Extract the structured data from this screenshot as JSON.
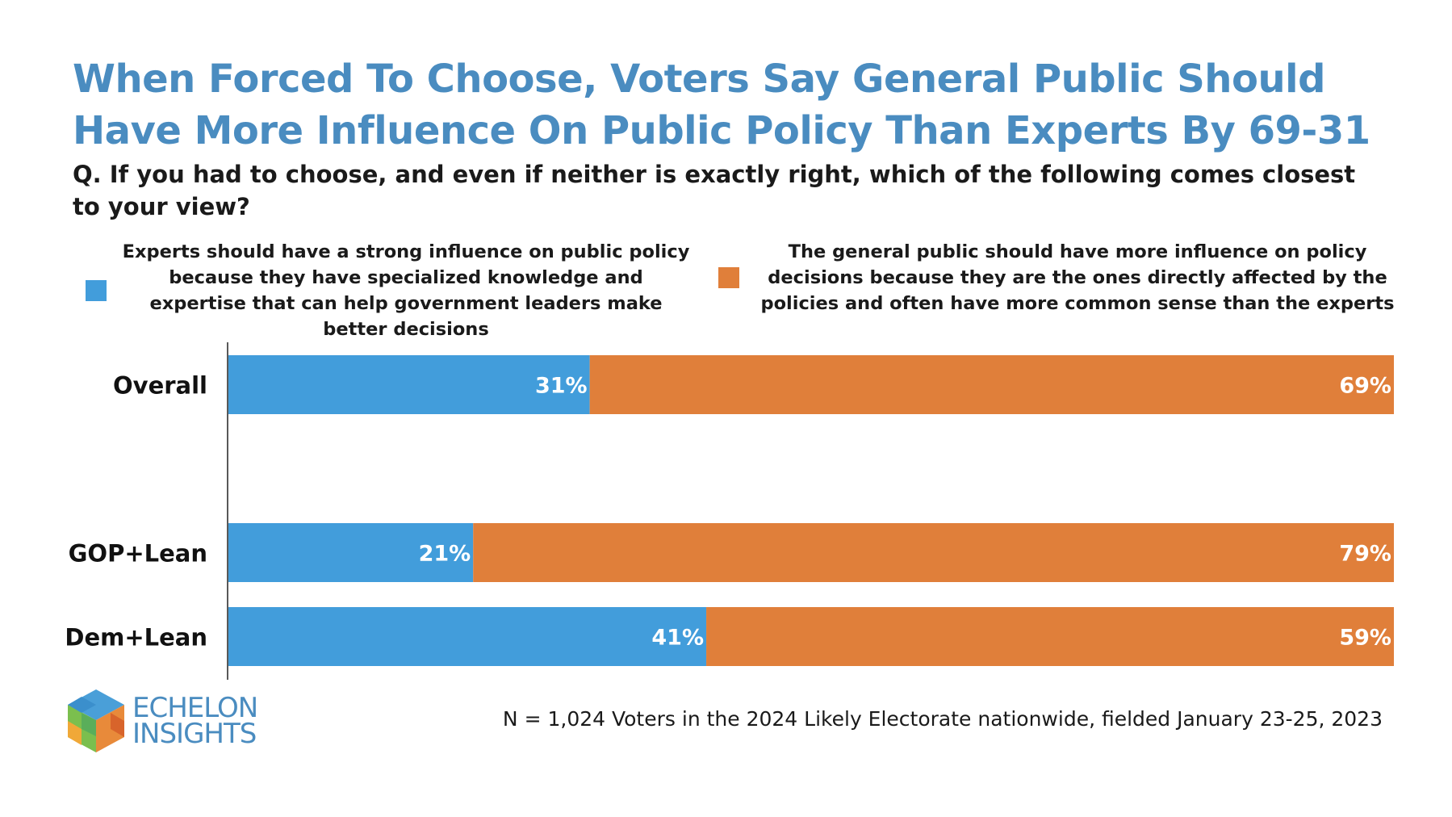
{
  "title": "When Forced To Choose, Voters Say General Public Should Have More Influence On Public Policy Than Experts By 69-31",
  "question": "Q. If you had to choose, and even if neither is exactly right, which of the following comes closest to your view?",
  "colors": {
    "title": "#4a8cc0",
    "experts": "#429ddb",
    "public": "#e07f3a"
  },
  "chart_data": {
    "type": "bar",
    "orientation": "horizontal",
    "stacked": true,
    "title": "When Forced To Choose, Voters Say General Public Should Have More Influence On Public Policy Than Experts By 69-31",
    "categories": [
      "Overall",
      "GOP+Lean",
      "Dem+Lean"
    ],
    "series": [
      {
        "name": "Experts should have a strong influence on public policy because they have specialized knowledge and expertise that can help government leaders make better decisions",
        "values": [
          31,
          21,
          41
        ],
        "labels": [
          "31%",
          "21%",
          "41%"
        ],
        "color": "#429ddb"
      },
      {
        "name": "The general public should have more influence on policy decisions because they are the ones directly affected by the policies and often have more common sense than the experts",
        "values": [
          69,
          79,
          59
        ],
        "labels": [
          "69%",
          "79%",
          "59%"
        ],
        "color": "#e07f3a"
      }
    ],
    "xlim": [
      0,
      100
    ],
    "grid": false,
    "legend_position": "top"
  },
  "logo": {
    "line1": "ECHELON",
    "line2": "INSIGHTS"
  },
  "footnote": "N = 1,024 Voters in the 2024 Likely Electorate nationwide, fielded January 23-25, 2023"
}
